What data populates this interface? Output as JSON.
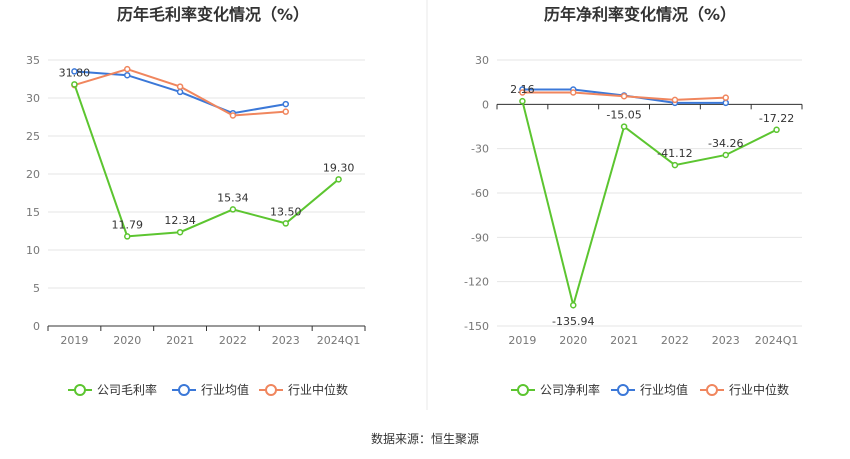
{
  "colors": {
    "company": "#5cc530",
    "industry_avg": "#3b78d8",
    "industry_median": "#f0865e",
    "grid": "#e6e6e6",
    "axis": "#333333",
    "divider": "#e8e8e8"
  },
  "legend": {
    "gross": [
      "公司毛利率",
      "行业均值",
      "行业中位数"
    ],
    "net": [
      "公司净利率",
      "行业均值",
      "行业中位数"
    ]
  },
  "source_text": "数据来源：恒生聚源",
  "chart_data": [
    {
      "type": "line",
      "title": "历年毛利率变化情况（%）",
      "categories": [
        "2019",
        "2020",
        "2021",
        "2022",
        "2023",
        "2024Q1"
      ],
      "ylim": [
        0,
        35
      ],
      "yticks": [
        0,
        5,
        10,
        15,
        20,
        25,
        30,
        35
      ],
      "grid": true,
      "legend_position": "bottom",
      "series": [
        {
          "name": "公司毛利率",
          "values": [
            31.8,
            11.79,
            12.34,
            15.34,
            13.5,
            19.3
          ],
          "labels": [
            "31.80",
            "11.79",
            "12.34",
            "15.34",
            "13.50",
            "19.30"
          ]
        },
        {
          "name": "行业均值",
          "values": [
            33.5,
            33.0,
            30.8,
            28.0,
            29.2,
            null
          ]
        },
        {
          "name": "行业中位数",
          "values": [
            31.7,
            33.8,
            31.5,
            27.7,
            28.2,
            null
          ]
        }
      ]
    },
    {
      "type": "line",
      "title": "历年净利率变化情况（%）",
      "categories": [
        "2019",
        "2020",
        "2021",
        "2022",
        "2023",
        "2024Q1"
      ],
      "ylim": [
        -150,
        30
      ],
      "yticks": [
        -150,
        -120,
        -90,
        -60,
        -30,
        0,
        30
      ],
      "grid": true,
      "legend_position": "bottom",
      "series": [
        {
          "name": "公司净利率",
          "values": [
            2.16,
            -135.94,
            -15.05,
            -41.12,
            -34.26,
            -17.22
          ],
          "labels": [
            "2.16",
            "-135.94",
            "-15.05",
            "-41.12",
            "-34.26",
            "-17.22"
          ]
        },
        {
          "name": "行业均值",
          "values": [
            10.0,
            10.0,
            6.0,
            1.0,
            1.0,
            null
          ]
        },
        {
          "name": "行业中位数",
          "values": [
            8.0,
            8.0,
            5.5,
            3.0,
            4.5,
            null
          ]
        }
      ]
    }
  ]
}
